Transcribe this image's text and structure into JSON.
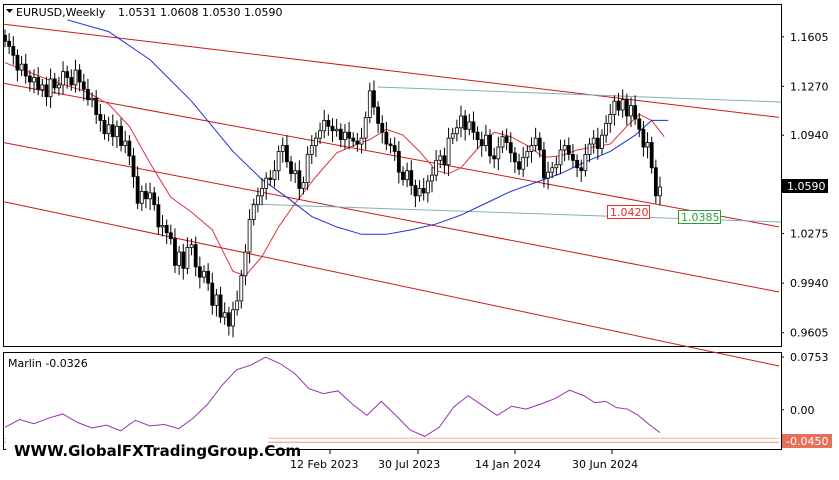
{
  "header": {
    "symbol_title": "EURUSD,Weekly",
    "ohlc": "1.0531 1.0608 1.0530 1.0590"
  },
  "indicator": {
    "title": "Marlin -0.0326",
    "scale_labels": [
      "0.0753",
      "0.00",
      "-0.0450"
    ],
    "current_value_label": "-0.0450"
  },
  "watermark": "WWW.GlobalFXTradingGroup.Com",
  "annotations": {
    "price_tag": "1.0590",
    "red_level": "1.0420",
    "green_level": "1.0385"
  },
  "colors": {
    "background": "#ffffff",
    "candles": "#000000",
    "ma_fast": "#e0303a",
    "ma_slow": "#1c2fd6",
    "channel": "#cc1a1a",
    "teal_line": "#7fb1b1",
    "oscillator": "#9a2fb0",
    "red_box": "#e03030",
    "green_box": "#2e9c3a"
  },
  "chart_data": {
    "type": "candlestick",
    "symbol": "EURUSD",
    "timeframe": "Weekly",
    "x_tick_labels": [
      "12 Feb 2023",
      "30 Jul 2023",
      "14 Jan 2024",
      "30 Jun 2024"
    ],
    "y_tick_labels": [
      "1.1605",
      "1.1270",
      "1.0940",
      "1.0590",
      "1.0275",
      "0.9940",
      "0.9605"
    ],
    "ylim": [
      0.9515,
      1.182
    ],
    "close_series": [
      1.1575,
      1.154,
      1.148,
      1.138,
      1.142,
      1.134,
      1.13,
      1.133,
      1.125,
      1.128,
      1.12,
      1.132,
      1.126,
      1.128,
      1.137,
      1.133,
      1.128,
      1.138,
      1.13,
      1.125,
      1.118,
      1.119,
      1.108,
      1.104,
      1.095,
      1.101,
      1.093,
      1.1,
      1.087,
      1.09,
      1.08,
      1.066,
      1.048,
      1.056,
      1.051,
      1.055,
      1.047,
      1.032,
      1.033,
      1.028,
      1.024,
      1.006,
      1.015,
      1.004,
      1.018,
      1.02,
      1.005,
      0.998,
      1.002,
      0.994,
      0.979,
      0.986,
      0.971,
      0.974,
      0.965,
      0.976,
      0.982,
      0.999,
      1.015,
      1.037,
      1.047,
      1.053,
      1.058,
      1.065,
      1.064,
      1.07,
      1.083,
      1.087,
      1.076,
      1.068,
      1.07,
      1.058,
      1.062,
      1.081,
      1.087,
      1.092,
      1.097,
      1.104,
      1.1,
      1.097,
      1.098,
      1.091,
      1.096,
      1.092,
      1.09,
      1.088,
      1.092,
      1.106,
      1.124,
      1.113,
      1.102,
      1.096,
      1.088,
      1.087,
      1.083,
      1.069,
      1.064,
      1.07,
      1.06,
      1.053,
      1.058,
      1.055,
      1.063,
      1.067,
      1.077,
      1.08,
      1.074,
      1.092,
      1.095,
      1.099,
      1.107,
      1.098,
      1.103,
      1.096,
      1.091,
      1.087,
      1.094,
      1.08,
      1.078,
      1.086,
      1.093,
      1.089,
      1.082,
      1.076,
      1.071,
      1.079,
      1.083,
      1.087,
      1.092,
      1.084,
      1.065,
      1.069,
      1.072,
      1.074,
      1.084,
      1.087,
      1.081,
      1.077,
      1.072,
      1.07,
      1.081,
      1.088,
      1.092,
      1.085,
      1.094,
      1.102,
      1.108,
      1.117,
      1.111,
      1.118,
      1.107,
      1.114,
      1.105,
      1.098,
      1.086,
      1.089,
      1.072,
      1.053,
      1.059
    ],
    "series": [
      {
        "kind": "moving-average-fast",
        "values": [
          [
            0,
            1.143
          ],
          [
            10,
            1.132
          ],
          [
            20,
            1.123
          ],
          [
            25,
            1.115
          ],
          [
            30,
            1.1
          ],
          [
            35,
            1.075
          ],
          [
            40,
            1.052
          ],
          [
            45,
            1.042
          ],
          [
            50,
            1.03
          ],
          [
            55,
            1.002
          ],
          [
            58,
            0.999
          ],
          [
            62,
            1.012
          ],
          [
            66,
            1.032
          ],
          [
            70,
            1.048
          ],
          [
            75,
            1.066
          ],
          [
            80,
            1.082
          ],
          [
            85,
            1.088
          ],
          [
            88,
            1.091
          ],
          [
            92,
            1.098
          ],
          [
            96,
            1.094
          ],
          [
            100,
            1.083
          ],
          [
            104,
            1.07
          ],
          [
            107,
            1.068
          ],
          [
            110,
            1.072
          ],
          [
            114,
            1.085
          ],
          [
            118,
            1.096
          ],
          [
            122,
            1.093
          ],
          [
            126,
            1.087
          ],
          [
            130,
            1.079
          ],
          [
            134,
            1.08
          ],
          [
            138,
            1.084
          ],
          [
            142,
            1.086
          ],
          [
            146,
            1.088
          ],
          [
            150,
            1.1
          ],
          [
            153,
            1.108
          ],
          [
            156,
            1.104
          ],
          [
            159,
            1.093
          ]
        ]
      },
      {
        "kind": "moving-average-slow",
        "values": [
          [
            15,
            1.172
          ],
          [
            25,
            1.164
          ],
          [
            35,
            1.145
          ],
          [
            45,
            1.117
          ],
          [
            55,
            1.083
          ],
          [
            62,
            1.064
          ],
          [
            68,
            1.052
          ],
          [
            74,
            1.039
          ],
          [
            80,
            1.032
          ],
          [
            86,
            1.027
          ],
          [
            92,
            1.027
          ],
          [
            98,
            1.03
          ],
          [
            104,
            1.034
          ],
          [
            110,
            1.04
          ],
          [
            116,
            1.048
          ],
          [
            122,
            1.056
          ],
          [
            128,
            1.062
          ],
          [
            134,
            1.068
          ],
          [
            140,
            1.076
          ],
          [
            146,
            1.083
          ],
          [
            152,
            1.094
          ],
          [
            156,
            1.104
          ],
          [
            160,
            1.104
          ]
        ]
      }
    ],
    "oscillator": {
      "name": "Marlin",
      "ylim": [
        -0.056,
        0.081
      ],
      "values": [
        [
          0,
          -0.025
        ],
        [
          4,
          -0.014
        ],
        [
          8,
          -0.02
        ],
        [
          12,
          -0.012
        ],
        [
          16,
          -0.006
        ],
        [
          20,
          -0.018
        ],
        [
          24,
          -0.026
        ],
        [
          28,
          -0.022
        ],
        [
          32,
          -0.03
        ],
        [
          36,
          -0.015
        ],
        [
          40,
          -0.023
        ],
        [
          44,
          -0.021
        ],
        [
          48,
          -0.027
        ],
        [
          52,
          -0.012
        ],
        [
          56,
          0.008
        ],
        [
          60,
          0.035
        ],
        [
          64,
          0.057
        ],
        [
          68,
          0.064
        ],
        [
          72,
          0.075
        ],
        [
          76,
          0.066
        ],
        [
          80,
          0.052
        ],
        [
          84,
          0.03
        ],
        [
          88,
          0.023
        ],
        [
          92,
          0.027
        ],
        [
          96,
          0.008
        ],
        [
          100,
          -0.008
        ],
        [
          104,
          0.012
        ],
        [
          108,
          -0.008
        ],
        [
          112,
          -0.029
        ],
        [
          116,
          -0.038
        ],
        [
          120,
          -0.025
        ],
        [
          124,
          0.004
        ],
        [
          128,
          0.02
        ],
        [
          132,
          0.006
        ],
        [
          136,
          -0.008
        ],
        [
          140,
          0.005
        ],
        [
          144,
          0.001
        ],
        [
          148,
          0.008
        ],
        [
          152,
          0.016
        ],
        [
          156,
          0.028
        ],
        [
          160,
          0.02
        ],
        [
          163,
          0.01
        ],
        [
          166,
          0.012
        ],
        [
          169,
          0.003
        ],
        [
          172,
          0.001
        ],
        [
          175,
          -0.008
        ],
        [
          178,
          -0.021
        ],
        [
          181,
          -0.0326
        ]
      ]
    }
  }
}
